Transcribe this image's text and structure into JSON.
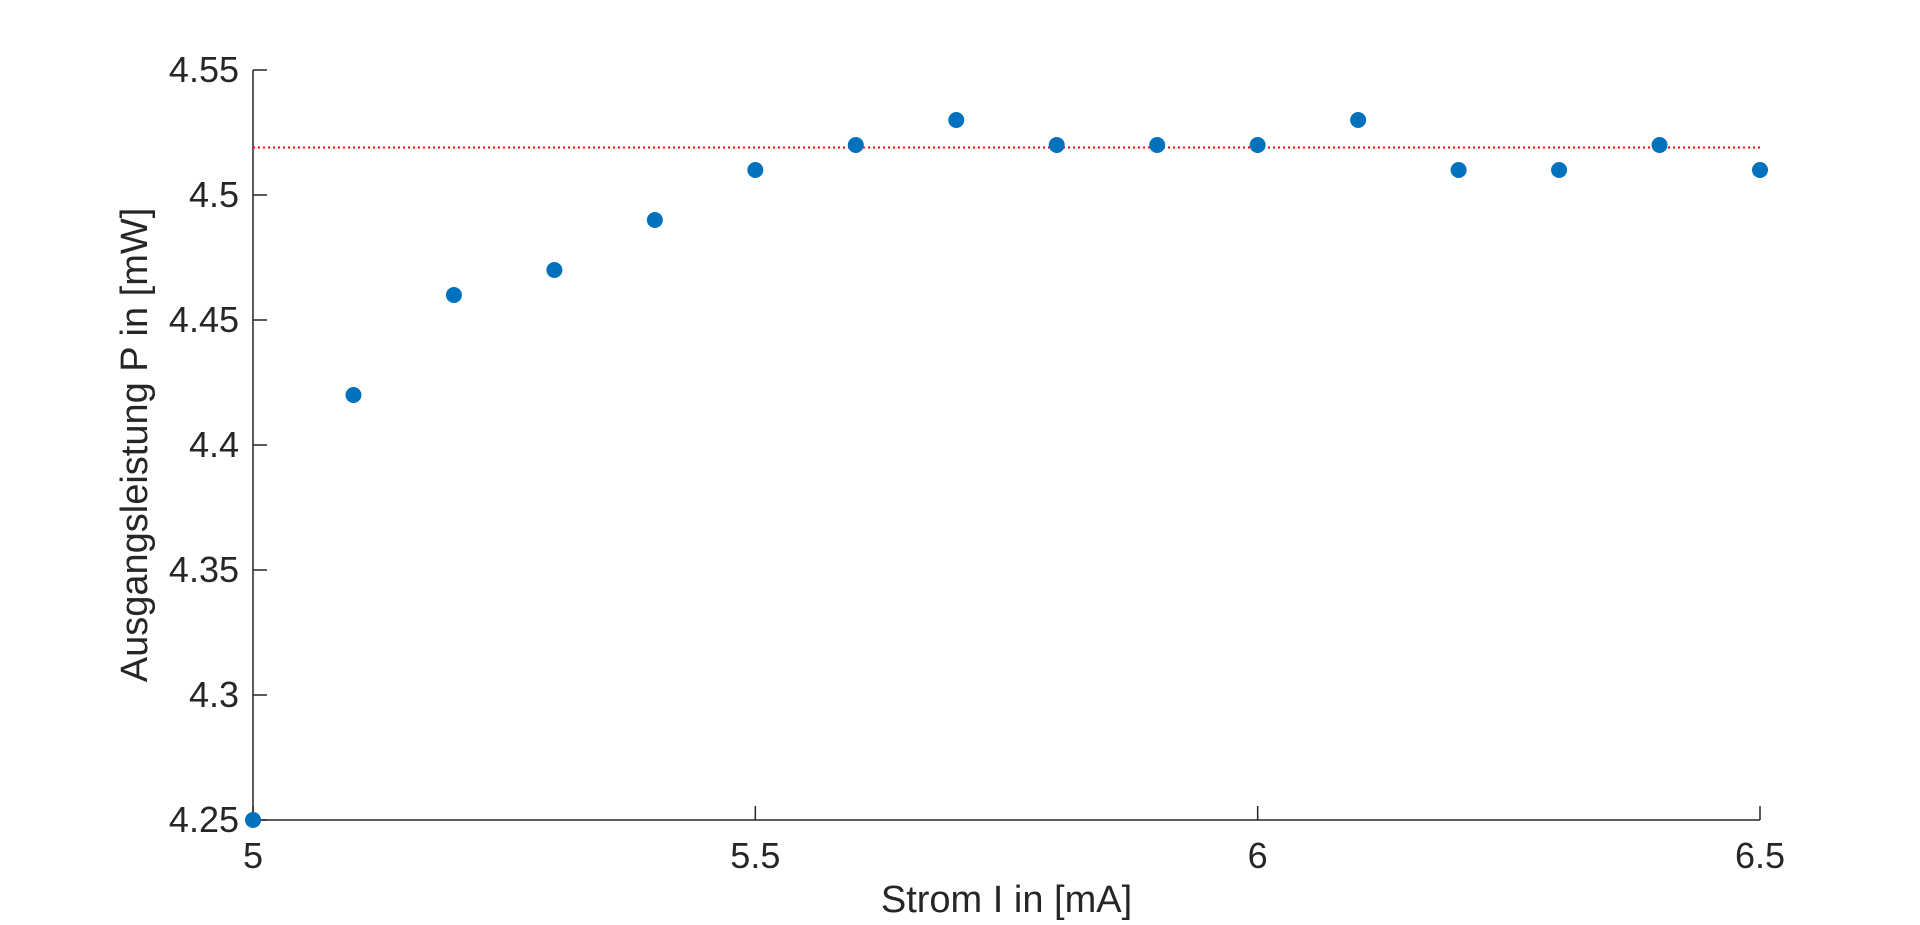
{
  "chart_data": {
    "type": "scatter",
    "xlabel": "Strom I in [mA]",
    "ylabel": "Ausgangsleistung P in [mW]",
    "xlim": [
      5,
      6.5
    ],
    "ylim": [
      4.25,
      4.55
    ],
    "x_ticks": [
      "5",
      "5.5",
      "6",
      "6.5"
    ],
    "y_ticks": [
      "4.25",
      "4.3",
      "4.35",
      "4.4",
      "4.45",
      "4.5",
      "4.55"
    ],
    "grid": false,
    "series": [
      {
        "x": [
          5.0,
          5.1,
          5.2,
          5.3,
          5.4,
          5.5,
          5.6,
          5.7,
          5.8,
          5.9,
          6.0,
          6.1,
          6.2,
          6.3,
          6.4,
          6.5
        ],
        "y": [
          4.25,
          4.42,
          4.46,
          4.47,
          4.49,
          4.51,
          4.52,
          4.53,
          4.52,
          4.52,
          4.52,
          4.53,
          4.51,
          4.51,
          4.52,
          4.51
        ],
        "color": "#0072BD"
      }
    ],
    "reference_line": {
      "y": 4.519,
      "x_range": [
        5.0,
        6.5
      ],
      "color": "#FF0000",
      "style": "dotted"
    }
  }
}
